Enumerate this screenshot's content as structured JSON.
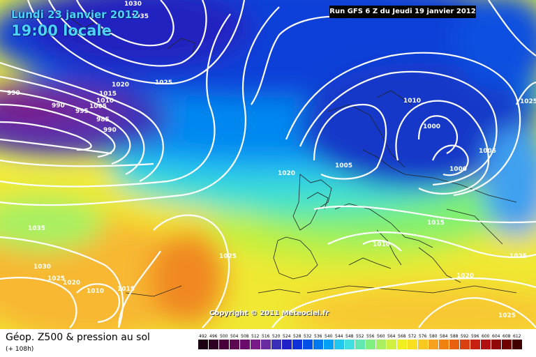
{
  "header": {
    "run_title": "Run GFS 6 Z du Jeudi 19 janvier 2012",
    "date": "Lundi 23 janvier 2012",
    "time": "19:00 locale"
  },
  "copyright": "Copyright © 2011 Meteociel.fr",
  "legend": {
    "title": "Géop. Z500 & pression au sol",
    "subtitle": "(+ 108h)",
    "scale_values": [
      "492",
      "496",
      "500",
      "504",
      "508",
      "512",
      "516",
      "520",
      "524",
      "528",
      "532",
      "536",
      "540",
      "544",
      "548",
      "552",
      "556",
      "560",
      "564",
      "568",
      "572",
      "576",
      "580",
      "584",
      "588",
      "592",
      "596",
      "600",
      "604",
      "608",
      "612"
    ],
    "scale_colors": [
      "#1a0010",
      "#300024",
      "#48003a",
      "#5c0a52",
      "#6a0a6a",
      "#7a1a88",
      "#6a2aa0",
      "#3a30b8",
      "#2020c8",
      "#1030d8",
      "#0050e8",
      "#0078f0",
      "#00a0f8",
      "#20c8f0",
      "#40e0e0",
      "#60e8b0",
      "#80f080",
      "#a8f060",
      "#d0f040",
      "#f0f020",
      "#f8e020",
      "#f8c820",
      "#f8a020",
      "#f08010",
      "#e86010",
      "#d84010",
      "#c82010",
      "#b01010",
      "#900808",
      "#700000",
      "#400000"
    ]
  },
  "isobars": [
    {
      "text": "1030"
    },
    {
      "text": "1035"
    },
    {
      "text": "1025"
    },
    {
      "text": "1020"
    },
    {
      "text": "1015"
    },
    {
      "text": "1010"
    },
    {
      "text": "1005"
    },
    {
      "text": "990"
    },
    {
      "text": "990"
    },
    {
      "text": "995"
    },
    {
      "text": "985"
    },
    {
      "text": "990"
    },
    {
      "text": "1020"
    },
    {
      "text": "1010"
    },
    {
      "text": "1000"
    },
    {
      "text": "1005"
    },
    {
      "text": "1000"
    },
    {
      "text": "1005"
    },
    {
      "text": "1025"
    },
    {
      "text": "1015"
    },
    {
      "text": "1010"
    },
    {
      "text": "1025"
    },
    {
      "text": "1020"
    },
    {
      "text": "1025"
    },
    {
      "text": "1035"
    },
    {
      "text": "1030"
    },
    {
      "text": "1025"
    },
    {
      "text": "1020"
    },
    {
      "text": "1010"
    },
    {
      "text": "1015"
    },
    {
      "text": "1025"
    }
  ]
}
